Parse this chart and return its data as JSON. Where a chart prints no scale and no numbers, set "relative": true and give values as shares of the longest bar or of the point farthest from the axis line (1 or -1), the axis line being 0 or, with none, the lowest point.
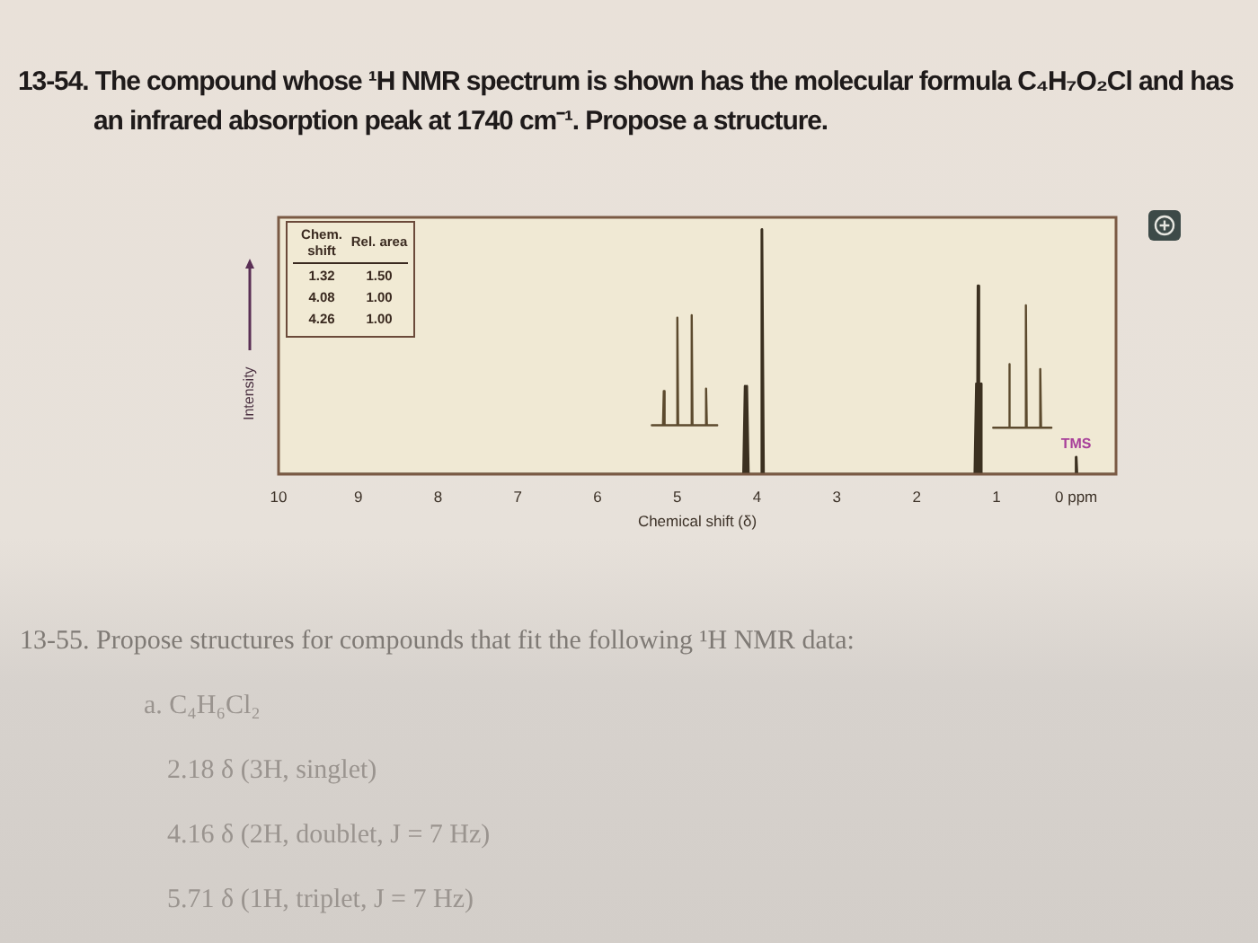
{
  "chart_data": {
    "type": "line",
    "title": "13-54. The compound whose ¹H NMR spectrum is shown has the molecular formula C₄H₇O₂Cl and has an infrared absorption peak at 1740 cm⁻¹. Propose a structure.",
    "xlabel": "Chemical shift (δ)",
    "ylabel": "Intensity",
    "relative": true,
    "xlim": [
      10,
      -0.5
    ],
    "xticks": [
      10,
      9,
      8,
      7,
      6,
      5,
      4,
      3,
      2,
      1,
      {
        "value": 0,
        "label": "0 ppm"
      }
    ],
    "series": [
      {
        "color": "#3b3020",
        "x": [
          10,
          4.17,
          4.15,
          4.14,
          4.13,
          4.11,
          3.96,
          3.94,
          3.92,
          1.27,
          1.25,
          1.24,
          1.23,
          1.22,
          1.21,
          1.19,
          0.01,
          0,
          -0.01,
          -0.5
        ],
        "values": [
          0,
          0,
          0.36,
          0,
          0.36,
          0,
          0,
          1,
          0,
          0,
          0.37,
          0,
          0.77,
          0,
          0.37,
          0,
          0,
          0.07,
          0,
          0
        ]
      },
      {
        "color": "#5c4a2e",
        "x": [
          5.32,
          5.18,
          5.17,
          5.16,
          5.01,
          5.0,
          4.99,
          4.83,
          4.82,
          4.81,
          4.65,
          4.64,
          4.63,
          4.5
        ],
        "values": [
          0.2,
          0.2,
          0.34,
          0.2,
          0.2,
          0.64,
          0.2,
          0.2,
          0.65,
          0.2,
          0.2,
          0.35,
          0.2,
          0.2
        ]
      },
      {
        "color": "#5c4a2e",
        "x": [
          1.04,
          0.85,
          0.84,
          0.83,
          0.64,
          0.63,
          0.62,
          0.46,
          0.45,
          0.44,
          0.31
        ],
        "values": [
          0.19,
          0.19,
          0.45,
          0.19,
          0.19,
          0.69,
          0.19,
          0.19,
          0.43,
          0.19,
          0.19
        ]
      }
    ],
    "annotations": [
      {
        "text": "TMS",
        "x": 0,
        "y": 0.07
      },
      "Chem. shift",
      "Rel. area",
      "1.32",
      "1.50",
      "4.08",
      "1.00",
      "4.26",
      "1.00",
      "13-55. Propose structures for compounds that fit the following ¹H NMR data:",
      "a. C₄H₆Cl₂",
      "2.18 δ (3H, singlet)",
      "4.16 δ (2H, doublet, J = 7 Hz)",
      "5.71 δ (1H, triplet, J = 7 Hz)"
    ]
  }
}
